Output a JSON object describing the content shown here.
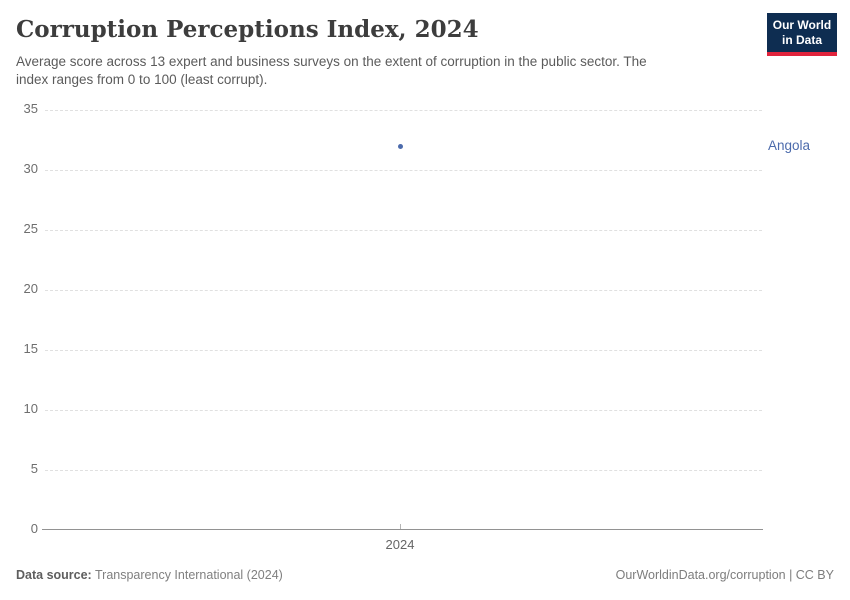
{
  "header": {
    "title": "Corruption Perceptions Index, 2024",
    "subtitle_line1": "Average score across 13 expert and business surveys on the extent of corruption in the public sector. The",
    "subtitle_line2": "index ranges from 0 to 100 (least corrupt).",
    "logo_line1": "Our World",
    "logo_line2": "in Data",
    "logo_bg_color": "#0e2d51",
    "logo_accent_color": "#e0233c"
  },
  "chart_data": {
    "type": "scatter",
    "title": "Corruption Perceptions Index, 2024",
    "x": [
      2024
    ],
    "series": [
      {
        "name": "Angola",
        "values": [
          32
        ],
        "color": "#4c6bac"
      }
    ],
    "xticks": [
      "2024"
    ],
    "yticks": [
      0,
      5,
      10,
      15,
      20,
      25,
      30,
      35
    ],
    "ylim": [
      0,
      35
    ],
    "xlabel": "",
    "ylabel": "",
    "grid": "horizontal-dashed",
    "legend_position": "right-of-plot"
  },
  "footer": {
    "source_label": "Data source:",
    "source_value": "Transparency International (2024)",
    "rights": "OurWorldinData.org/corruption | CC BY"
  }
}
